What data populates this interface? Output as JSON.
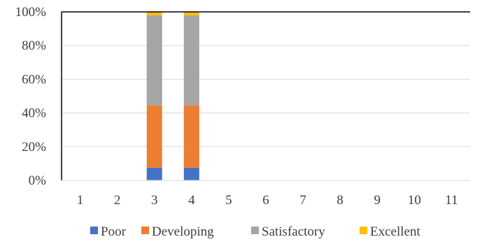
{
  "chart_data": {
    "type": "bar",
    "stacked": true,
    "percent": true,
    "categories": [
      "1",
      "2",
      "3",
      "4",
      "5",
      "6",
      "7",
      "8",
      "9",
      "10",
      "11"
    ],
    "series": [
      {
        "name": "Poor",
        "color": "#4472C4",
        "values": [
          0,
          0,
          7.5,
          7.5,
          0,
          0,
          0,
          0,
          0,
          0,
          0
        ]
      },
      {
        "name": "Developing",
        "color": "#ED7D31",
        "values": [
          0,
          0,
          37,
          37,
          0,
          0,
          0,
          0,
          0,
          0,
          0
        ]
      },
      {
        "name": "Satisfactory",
        "color": "#A5A5A5",
        "values": [
          0,
          0,
          53.5,
          53.5,
          0,
          0,
          0,
          0,
          0,
          0,
          0
        ]
      },
      {
        "name": "Excellent",
        "color": "#FFC000",
        "values": [
          0,
          0,
          2,
          2,
          0,
          0,
          0,
          0,
          0,
          0,
          0
        ]
      }
    ],
    "yticks": [
      "0%",
      "20%",
      "40%",
      "60%",
      "80%",
      "100%"
    ],
    "ylim": [
      0,
      100
    ],
    "grid": true,
    "legend": "bottom"
  }
}
